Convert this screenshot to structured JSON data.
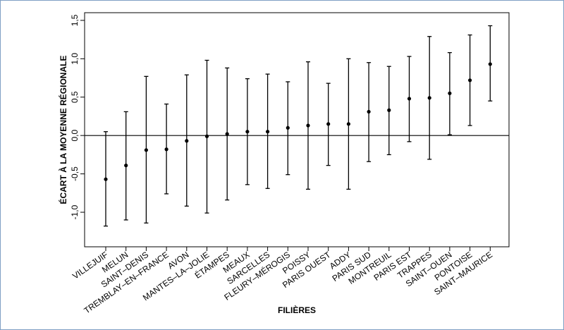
{
  "chart_data": {
    "type": "errorbar",
    "title": "",
    "xlabel": "FILIÈRES",
    "ylabel": "ÉCART À LA MOYENNE RÉGIONALE",
    "ylim": [
      -1.45,
      1.6
    ],
    "yticks": [
      -1.0,
      -0.5,
      0.0,
      0.5,
      1.0,
      1.5
    ],
    "ytick_labels": [
      "-1,0",
      "-0,5",
      "0,0",
      "0,5",
      "1,0",
      "1,5"
    ],
    "reference_line": 0,
    "categories": [
      "VILLEJUIF",
      "MELUN",
      "SAINT–DENIS",
      "TREMBLAY–EN–FRANCE",
      "AVON",
      "MANTES–LA–JOLIE",
      "ÉTAMPES",
      "MEAUX",
      "SARCELLES",
      "FLEURY–MÉROGIS",
      "POISSY",
      "PARIS OUEST",
      "ADDY",
      "PARIS SUD",
      "MONTREUIL",
      "PARIS EST",
      "TRAPPES",
      "SAINT–OUEN",
      "PONTOISE",
      "SAINT–MAURICE"
    ],
    "values": [
      -0.57,
      -0.39,
      -0.19,
      -0.18,
      -0.07,
      -0.01,
      0.02,
      0.05,
      0.05,
      0.1,
      0.13,
      0.15,
      0.15,
      0.31,
      0.33,
      0.48,
      0.49,
      0.55,
      0.72,
      0.93
    ],
    "lower": [
      -1.18,
      -1.1,
      -1.14,
      -0.76,
      -0.92,
      -1.01,
      -0.84,
      -0.64,
      -0.69,
      -0.51,
      -0.7,
      -0.39,
      -0.7,
      -0.34,
      -0.25,
      -0.08,
      -0.31,
      0.01,
      0.13,
      0.45
    ],
    "upper": [
      0.05,
      0.31,
      0.77,
      0.41,
      0.79,
      0.98,
      0.88,
      0.74,
      0.8,
      0.7,
      0.96,
      0.68,
      1.0,
      0.95,
      0.9,
      1.03,
      1.29,
      1.08,
      1.31,
      1.43
    ],
    "grid": false,
    "legend": "none"
  }
}
